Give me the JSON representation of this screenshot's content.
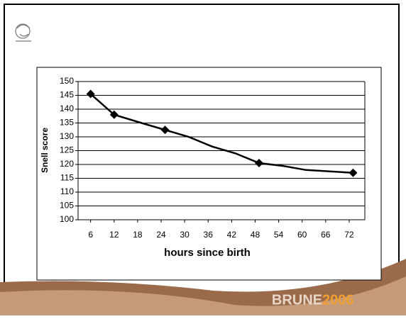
{
  "chart_data": {
    "type": "line",
    "xlabel": "hours since birth",
    "ylabel": "Snell score",
    "series": [
      {
        "color": "#000000",
        "x": [
          6,
          12,
          19,
          25,
          31,
          37,
          43,
          49,
          55,
          61,
          67,
          73
        ],
        "values": [
          145.5,
          138,
          135,
          132.5,
          130,
          126.5,
          124,
          120.5,
          119.5,
          118,
          117.5,
          117
        ],
        "markers": [
          true,
          true,
          false,
          true,
          false,
          false,
          false,
          true,
          false,
          false,
          false,
          true
        ]
      }
    ],
    "xlim": [
      2.8,
      76
    ],
    "xticks": [
      6,
      12,
      18,
      24,
      30,
      36,
      42,
      48,
      54,
      60,
      66,
      72
    ],
    "ylim": [
      100,
      150
    ],
    "yticks": [
      100,
      105,
      110,
      115,
      120,
      125,
      130,
      135,
      140,
      145,
      150
    ],
    "grid": true
  },
  "slide": {
    "logo_left": "BRUNE",
    "logo_right": "2006"
  }
}
